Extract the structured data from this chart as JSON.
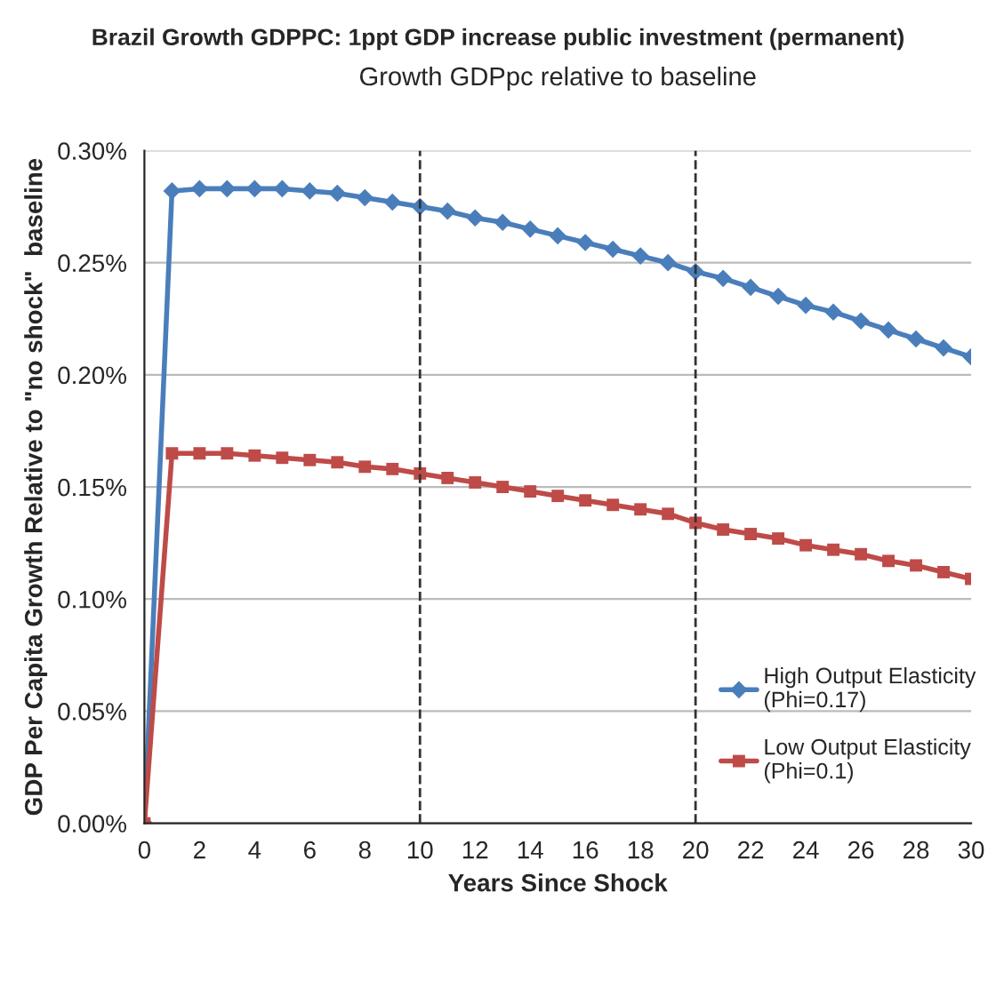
{
  "chart_data": {
    "type": "line",
    "title": "Brazil Growth GDPPC: 1ppt GDP increase public investment (permanent)",
    "subtitle": "Growth GDPpc relative to baseline",
    "xlabel": "Years Since Shock",
    "ylabel": "GDP Per Capita Growth Relative to \"no shock\"  baseline",
    "x": [
      0,
      1,
      2,
      3,
      4,
      5,
      6,
      7,
      8,
      9,
      10,
      11,
      12,
      13,
      14,
      15,
      16,
      17,
      18,
      19,
      20,
      21,
      22,
      23,
      24,
      25,
      26,
      27,
      28,
      29,
      30
    ],
    "series": [
      {
        "name": "High Output Elasticity\n(Phi=0.17)",
        "color": "#4a7ebb",
        "marker": "diamond",
        "values": [
          0,
          0.282,
          0.283,
          0.283,
          0.283,
          0.283,
          0.282,
          0.281,
          0.279,
          0.277,
          0.275,
          0.273,
          0.27,
          0.268,
          0.265,
          0.262,
          0.259,
          0.256,
          0.253,
          0.25,
          0.246,
          0.243,
          0.239,
          0.235,
          0.231,
          0.228,
          0.224,
          0.22,
          0.216,
          0.212,
          0.208
        ]
      },
      {
        "name": "Low Output Elasticity\n(Phi=0.1)",
        "color": "#be4b48",
        "marker": "square",
        "values": [
          0,
          0.165,
          0.165,
          0.165,
          0.164,
          0.163,
          0.162,
          0.161,
          0.159,
          0.158,
          0.156,
          0.154,
          0.152,
          0.15,
          0.148,
          0.146,
          0.144,
          0.142,
          0.14,
          0.138,
          0.134,
          0.131,
          0.129,
          0.127,
          0.124,
          0.122,
          0.12,
          0.117,
          0.115,
          0.112,
          0.109
        ]
      }
    ],
    "xlim": [
      0,
      30
    ],
    "xticks": [
      0,
      2,
      4,
      6,
      8,
      10,
      12,
      14,
      16,
      18,
      20,
      22,
      24,
      26,
      28,
      30
    ],
    "ylim": [
      0,
      0.3
    ],
    "yticks": [
      {
        "value": 0,
        "label": "0.00%"
      },
      {
        "value": 0.05,
        "label": "0.05%"
      },
      {
        "value": 0.1,
        "label": "0.10%"
      },
      {
        "value": 0.15,
        "label": "0.15%"
      },
      {
        "value": 0.2,
        "label": "0.20%"
      },
      {
        "value": 0.25,
        "label": "0.25%"
      },
      {
        "value": 0.3,
        "label": "0.30%"
      }
    ],
    "ref_lines": [
      {
        "axis": "x",
        "value": 10,
        "label": null,
        "color": "#333333",
        "line_style": "dashed"
      },
      {
        "axis": "x",
        "value": 20,
        "label": null,
        "color": "#333333",
        "line_style": "dashed"
      }
    ],
    "grid": "y",
    "legend": "right",
    "line_style": "solid"
  }
}
